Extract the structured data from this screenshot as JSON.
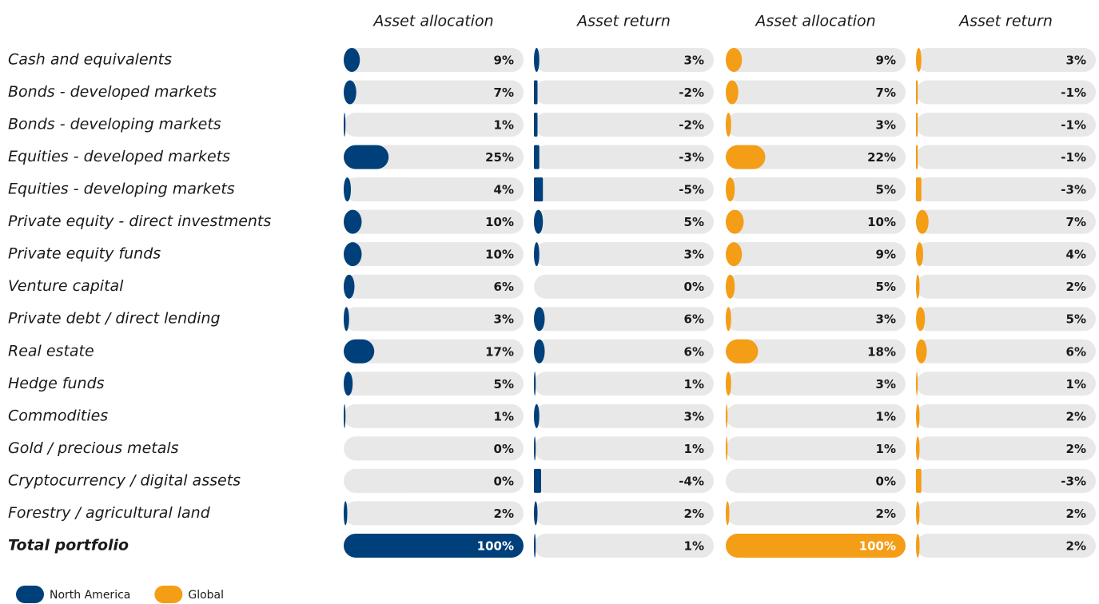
{
  "chart_data": {
    "type": "bar-table",
    "columns": [
      "Asset allocation",
      "Asset return",
      "Asset allocation",
      "Asset return"
    ],
    "categories": [
      "Cash and equivalents",
      "Bonds - developed markets",
      "Bonds - developing markets",
      "Equities - developed markets",
      "Equities - developing markets",
      "Private equity - direct investments",
      "Private equity funds",
      "Venture capital",
      "Private debt / direct lending",
      "Real estate",
      "Hedge funds",
      "Commodities",
      "Gold / precious metals",
      "Cryptocurrency / digital assets",
      "Forestry / agricultural land",
      "Total portfolio"
    ],
    "xlim": [
      0,
      100
    ],
    "series": [
      {
        "name": "North America",
        "color": "#00407a",
        "allocation": {
          "values": [
            9,
            7,
            1,
            25,
            4,
            10,
            10,
            6,
            3,
            17,
            5,
            1,
            0,
            0,
            2,
            100
          ],
          "value_labels": [
            "9%",
            "7%",
            "1%",
            "25%",
            "4%",
            "10%",
            "10%",
            "6%",
            "3%",
            "17%",
            "5%",
            "1%",
            "0%",
            "0%",
            "2%",
            "100%"
          ]
        },
        "return": {
          "values": [
            3,
            -2,
            -2,
            -3,
            -5,
            5,
            3,
            0,
            6,
            6,
            1,
            3,
            1,
            -4,
            2,
            1
          ],
          "value_labels": [
            "3%",
            "-2%",
            "-2%",
            "-3%",
            "-5%",
            "5%",
            "3%",
            "0%",
            "6%",
            "6%",
            "1%",
            "3%",
            "1%",
            "-4%",
            "2%",
            "1%"
          ]
        }
      },
      {
        "name": "Global",
        "color": "#f49d16",
        "allocation": {
          "values": [
            9,
            7,
            3,
            22,
            5,
            10,
            9,
            5,
            3,
            18,
            3,
            1,
            1,
            0,
            2,
            100
          ],
          "value_labels": [
            "9%",
            "7%",
            "3%",
            "22%",
            "5%",
            "10%",
            "9%",
            "5%",
            "3%",
            "18%",
            "3%",
            "1%",
            "1%",
            "0%",
            "2%",
            "100%"
          ]
        },
        "return": {
          "values": [
            3,
            -1,
            -1,
            -1,
            -3,
            7,
            4,
            2,
            5,
            6,
            1,
            2,
            2,
            -3,
            2,
            2
          ],
          "value_labels": [
            "3%",
            "-1%",
            "-1%",
            "-1%",
            "-3%",
            "7%",
            "4%",
            "2%",
            "5%",
            "6%",
            "1%",
            "2%",
            "2%",
            "-3%",
            "2%",
            "2%"
          ]
        }
      }
    ]
  }
}
